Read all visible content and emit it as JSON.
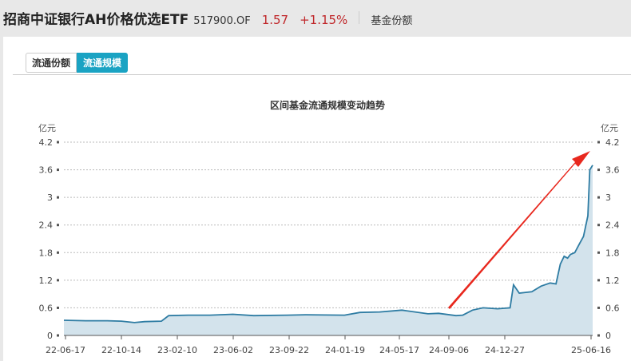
{
  "header": {
    "fund_name": "招商中证银行AH价格优选ETF",
    "code": "517900.OF",
    "price": "1.57",
    "change": "+1.15%",
    "link": "基金份额"
  },
  "tabs": [
    {
      "label": "流通份额",
      "active": false
    },
    {
      "label": "流通规模",
      "active": true
    }
  ],
  "colors": {
    "line": "#2e7ca3",
    "area": "#d3e3ec",
    "accent": "#1aa3c3",
    "up": "#c0282b",
    "arrow": "#e8281e"
  },
  "chart_data": {
    "type": "area",
    "title": "区间基金流通规模变动趋势",
    "ylabel_left": "亿元",
    "ylabel_right": "亿元",
    "ylim": [
      0,
      4.2
    ],
    "yticks": [
      "0",
      "0.6",
      "1.2",
      "1.8",
      "2.4",
      "3",
      "3.6",
      "4.2"
    ],
    "xticks": [
      "22-06-17",
      "22-10-14",
      "23-02-10",
      "23-06-02",
      "23-09-22",
      "24-01-19",
      "24-05-17",
      "24-09-06",
      "24-12-27",
      "25-06-16"
    ],
    "grid": true,
    "annotation": "red upward arrow",
    "series": [
      {
        "x": [
          "22-06-17",
          "22-08-01",
          "22-09-15",
          "22-10-14",
          "22-11-10",
          "22-12-01",
          "23-01-05",
          "23-01-20",
          "23-03-01",
          "23-04-15",
          "23-06-02",
          "23-07-15",
          "23-09-22",
          "23-11-01",
          "24-01-19",
          "24-02-20",
          "24-04-01",
          "24-05-17",
          "24-07-10",
          "24-08-01",
          "24-09-06",
          "24-09-20",
          "24-10-10",
          "24-11-01",
          "24-12-01",
          "24-12-27",
          "25-01-03",
          "25-01-15",
          "25-02-10",
          "25-03-01",
          "25-03-20",
          "25-04-01",
          "25-04-10",
          "25-04-18",
          "25-04-25",
          "25-05-01",
          "25-05-10",
          "25-05-20",
          "25-05-28",
          "25-06-06",
          "25-06-10",
          "25-06-16"
        ],
        "values": [
          0.33,
          0.32,
          0.32,
          0.31,
          0.28,
          0.3,
          0.31,
          0.43,
          0.44,
          0.44,
          0.46,
          0.43,
          0.44,
          0.45,
          0.44,
          0.5,
          0.51,
          0.55,
          0.47,
          0.48,
          0.43,
          0.44,
          0.55,
          0.6,
          0.58,
          0.6,
          1.1,
          0.92,
          0.95,
          1.07,
          1.14,
          1.12,
          1.55,
          1.72,
          1.68,
          1.76,
          1.8,
          2.0,
          2.15,
          2.6,
          3.6,
          3.7
        ]
      }
    ]
  }
}
